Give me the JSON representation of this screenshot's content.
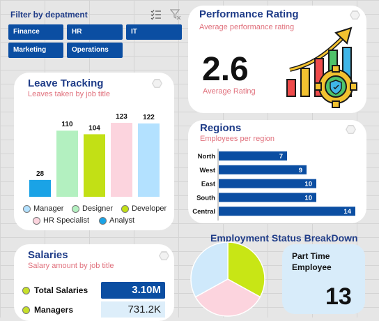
{
  "filter": {
    "title": "Filter by depatment",
    "buttons": [
      "Finance",
      "HR",
      "IT",
      "Marketing",
      "Operations"
    ]
  },
  "performance": {
    "title": "Performance Rating",
    "subtitle": "Average performance rating",
    "value": "2.6",
    "value_label": "Average Rating"
  },
  "leave": {
    "title": "Leave Tracking",
    "subtitle": "Leaves taken by job title",
    "legend": [
      "Manager",
      "Designer",
      "Developer",
      "HR Specialist",
      "Analyst"
    ]
  },
  "regions": {
    "title": "Regions",
    "subtitle": "Employees per region"
  },
  "salaries": {
    "title": "Salaries",
    "subtitle": "Salary amount by job title",
    "rows": [
      {
        "label": "Total Salaries",
        "value": "3.10M"
      },
      {
        "label": "Managers",
        "value": "731.2K"
      }
    ]
  },
  "employment": {
    "title": "Employment Status BreakDown",
    "kpi_label": "Part Time Employee",
    "kpi_value": "13"
  },
  "colors": {
    "accent": "#0b4ea2",
    "title": "#1f3c88",
    "subtitle": "#e0707c"
  },
  "chart_data": [
    {
      "type": "bar",
      "categories": [
        "Analyst",
        "Designer",
        "Developer",
        "HR Specialist",
        "Manager"
      ],
      "values": [
        28,
        110,
        104,
        123,
        122
      ],
      "colors": [
        "#1aa3e6",
        "#b3f0c0",
        "#c2e015",
        "#fcd4de",
        "#b3e1ff"
      ],
      "ylim": [
        0,
        130
      ]
    },
    {
      "type": "bar",
      "orientation": "horizontal",
      "categories": [
        "North",
        "West",
        "East",
        "South",
        "Central"
      ],
      "values": [
        7,
        9,
        10,
        10,
        14
      ],
      "xlim": [
        0,
        15
      ],
      "color": "#0b4ea2"
    },
    {
      "type": "pie",
      "values": [
        33,
        34,
        33
      ],
      "colors": [
        "#c8e615",
        "#fcd4de",
        "#cfe9fb"
      ]
    }
  ]
}
